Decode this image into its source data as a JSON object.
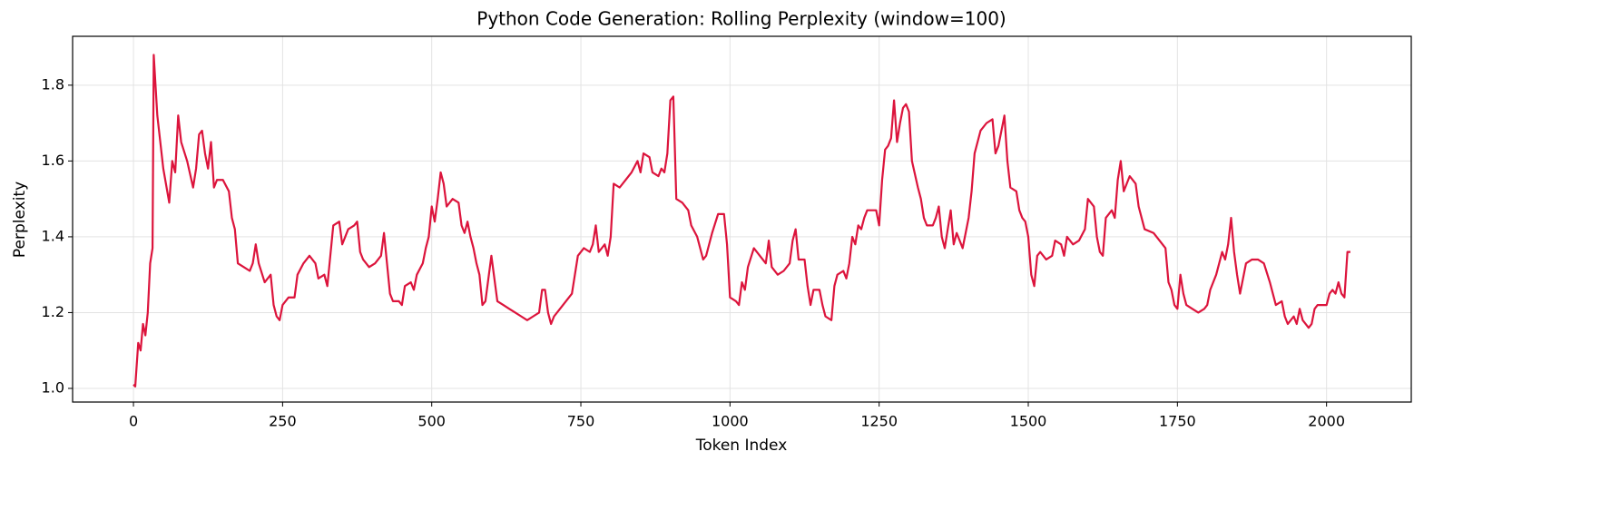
{
  "chart_data": {
    "type": "line",
    "title": "Python Code Generation: Rolling Perplexity (window=100)",
    "x_label": "Token Index",
    "y_label": "Perplexity",
    "xlim": [
      -102,
      2142
    ],
    "ylim": [
      0.964,
      1.929
    ],
    "xticks": [
      0,
      250,
      500,
      750,
      1000,
      1250,
      1500,
      1750,
      2000
    ],
    "yticks": [
      {
        "value": 1,
        "label": "1.0"
      },
      1.2,
      1.4,
      1.6,
      1.8
    ],
    "grid": true,
    "series": [
      {
        "color": "#dc143c",
        "x": [
          0,
          3,
          8,
          12,
          16,
          20,
          24,
          28,
          32,
          34,
          40,
          50,
          60,
          65,
          70,
          75,
          80,
          90,
          100,
          105,
          110,
          115,
          120,
          125,
          130,
          135,
          140,
          150,
          160,
          165,
          170,
          175,
          185,
          195,
          200,
          205,
          210,
          220,
          230,
          235,
          240,
          245,
          250,
          260,
          270,
          275,
          285,
          295,
          305,
          310,
          320,
          325,
          330,
          335,
          345,
          350,
          360,
          370,
          375,
          380,
          385,
          395,
          405,
          415,
          420,
          425,
          430,
          435,
          445,
          450,
          455,
          465,
          470,
          475,
          485,
          490,
          495,
          500,
          505,
          510,
          515,
          520,
          525,
          535,
          545,
          550,
          555,
          560,
          565,
          570,
          575,
          580,
          585,
          590,
          595,
          600,
          605,
          610,
          620,
          630,
          640,
          650,
          660,
          670,
          680,
          685,
          690,
          695,
          700,
          705,
          715,
          725,
          735,
          740,
          745,
          755,
          765,
          770,
          775,
          780,
          790,
          795,
          800,
          805,
          815,
          825,
          835,
          845,
          850,
          855,
          865,
          870,
          880,
          885,
          890,
          895,
          900,
          905,
          910,
          920,
          930,
          935,
          945,
          955,
          960,
          965,
          970,
          980,
          990,
          995,
          1000,
          1010,
          1015,
          1020,
          1025,
          1030,
          1040,
          1050,
          1060,
          1065,
          1070,
          1080,
          1090,
          1100,
          1105,
          1110,
          1115,
          1125,
          1130,
          1135,
          1140,
          1150,
          1155,
          1160,
          1170,
          1175,
          1180,
          1190,
          1195,
          1200,
          1205,
          1210,
          1215,
          1220,
          1225,
          1230,
          1245,
          1250,
          1255,
          1260,
          1265,
          1270,
          1275,
          1280,
          1285,
          1290,
          1295,
          1300,
          1305,
          1315,
          1320,
          1325,
          1330,
          1340,
          1345,
          1350,
          1355,
          1360,
          1370,
          1375,
          1380,
          1390,
          1395,
          1400,
          1405,
          1410,
          1415,
          1420,
          1430,
          1440,
          1445,
          1450,
          1460,
          1465,
          1470,
          1480,
          1485,
          1490,
          1495,
          1500,
          1505,
          1510,
          1515,
          1520,
          1530,
          1540,
          1545,
          1555,
          1560,
          1565,
          1575,
          1585,
          1595,
          1600,
          1610,
          1615,
          1620,
          1625,
          1630,
          1640,
          1645,
          1650,
          1655,
          1660,
          1670,
          1680,
          1685,
          1690,
          1695,
          1710,
          1720,
          1730,
          1735,
          1740,
          1745,
          1750,
          1755,
          1760,
          1765,
          1775,
          1785,
          1795,
          1800,
          1805,
          1815,
          1825,
          1830,
          1835,
          1840,
          1845,
          1850,
          1855,
          1865,
          1875,
          1885,
          1895,
          1905,
          1910,
          1915,
          1925,
          1930,
          1935,
          1945,
          1950,
          1955,
          1960,
          1970,
          1975,
          1980,
          1985,
          1990,
          2000,
          2005,
          2010,
          2015,
          2020,
          2025,
          2030,
          2035,
          2040
        ],
        "values": [
          1.01,
          1.005,
          1.12,
          1.1,
          1.17,
          1.14,
          1.2,
          1.33,
          1.37,
          1.88,
          1.72,
          1.58,
          1.49,
          1.6,
          1.57,
          1.72,
          1.65,
          1.6,
          1.53,
          1.58,
          1.67,
          1.68,
          1.62,
          1.58,
          1.65,
          1.53,
          1.55,
          1.55,
          1.52,
          1.45,
          1.42,
          1.33,
          1.32,
          1.31,
          1.33,
          1.38,
          1.33,
          1.28,
          1.3,
          1.22,
          1.19,
          1.18,
          1.22,
          1.24,
          1.24,
          1.3,
          1.33,
          1.35,
          1.33,
          1.29,
          1.3,
          1.27,
          1.35,
          1.43,
          1.44,
          1.38,
          1.42,
          1.43,
          1.44,
          1.36,
          1.34,
          1.32,
          1.33,
          1.35,
          1.41,
          1.33,
          1.25,
          1.23,
          1.23,
          1.22,
          1.27,
          1.28,
          1.26,
          1.3,
          1.33,
          1.37,
          1.4,
          1.48,
          1.44,
          1.5,
          1.57,
          1.54,
          1.48,
          1.5,
          1.49,
          1.43,
          1.41,
          1.44,
          1.4,
          1.37,
          1.33,
          1.3,
          1.22,
          1.23,
          1.29,
          1.35,
          1.29,
          1.23,
          1.22,
          1.21,
          1.2,
          1.19,
          1.18,
          1.19,
          1.2,
          1.26,
          1.26,
          1.2,
          1.17,
          1.19,
          1.21,
          1.23,
          1.25,
          1.3,
          1.35,
          1.37,
          1.36,
          1.38,
          1.43,
          1.36,
          1.38,
          1.35,
          1.4,
          1.54,
          1.53,
          1.55,
          1.57,
          1.6,
          1.57,
          1.62,
          1.61,
          1.57,
          1.56,
          1.58,
          1.57,
          1.62,
          1.76,
          1.77,
          1.5,
          1.49,
          1.47,
          1.43,
          1.4,
          1.34,
          1.35,
          1.38,
          1.41,
          1.46,
          1.46,
          1.38,
          1.24,
          1.23,
          1.22,
          1.28,
          1.26,
          1.32,
          1.37,
          1.35,
          1.33,
          1.39,
          1.32,
          1.3,
          1.31,
          1.33,
          1.39,
          1.42,
          1.34,
          1.34,
          1.27,
          1.22,
          1.26,
          1.26,
          1.22,
          1.19,
          1.18,
          1.27,
          1.3,
          1.31,
          1.29,
          1.33,
          1.4,
          1.38,
          1.43,
          1.42,
          1.45,
          1.47,
          1.47,
          1.43,
          1.55,
          1.63,
          1.64,
          1.66,
          1.76,
          1.65,
          1.7,
          1.74,
          1.75,
          1.73,
          1.6,
          1.53,
          1.5,
          1.45,
          1.43,
          1.43,
          1.45,
          1.48,
          1.4,
          1.37,
          1.47,
          1.38,
          1.41,
          1.37,
          1.41,
          1.45,
          1.52,
          1.62,
          1.65,
          1.68,
          1.7,
          1.71,
          1.62,
          1.64,
          1.72,
          1.6,
          1.53,
          1.52,
          1.47,
          1.45,
          1.44,
          1.4,
          1.3,
          1.27,
          1.35,
          1.36,
          1.34,
          1.35,
          1.39,
          1.38,
          1.35,
          1.4,
          1.38,
          1.39,
          1.42,
          1.5,
          1.48,
          1.4,
          1.36,
          1.35,
          1.45,
          1.47,
          1.45,
          1.55,
          1.6,
          1.52,
          1.56,
          1.54,
          1.48,
          1.45,
          1.42,
          1.41,
          1.39,
          1.37,
          1.28,
          1.26,
          1.22,
          1.21,
          1.3,
          1.25,
          1.22,
          1.21,
          1.2,
          1.21,
          1.22,
          1.26,
          1.3,
          1.36,
          1.34,
          1.38,
          1.45,
          1.36,
          1.3,
          1.25,
          1.33,
          1.34,
          1.34,
          1.33,
          1.28,
          1.25,
          1.22,
          1.23,
          1.19,
          1.17,
          1.19,
          1.17,
          1.21,
          1.18,
          1.16,
          1.17,
          1.21,
          1.22,
          1.22,
          1.22,
          1.25,
          1.26,
          1.25,
          1.28,
          1.25,
          1.24,
          1.36,
          1.36
        ]
      }
    ]
  }
}
